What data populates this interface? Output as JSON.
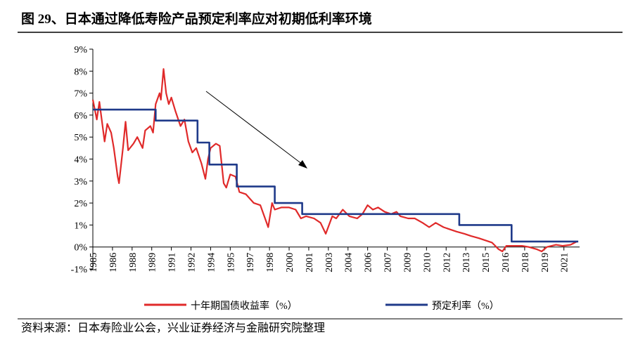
{
  "chart_data": {
    "type": "line",
    "title": "图 29、日本通过降低寿险产品预定利率应对初期低利率环境",
    "source": "资料来源：日本寿险业公会，兴业证券经济与金融研究院整理",
    "xlim": [
      1985,
      2022.2
    ],
    "xticks": [
      {
        "value": 1985,
        "label": "1985"
      },
      {
        "value": 1986.5,
        "label": "1986"
      },
      {
        "value": 1988,
        "label": "1988"
      },
      {
        "value": 1989.5,
        "label": "1989"
      },
      {
        "value": 1991,
        "label": "1991"
      },
      {
        "value": 1992.5,
        "label": "1992"
      },
      {
        "value": 1994,
        "label": "1994"
      },
      {
        "value": 1995.5,
        "label": "1995"
      },
      {
        "value": 1997,
        "label": "1997"
      },
      {
        "value": 1998.5,
        "label": "1998"
      },
      {
        "value": 2000,
        "label": "2000"
      },
      {
        "value": 2001.5,
        "label": "2001"
      },
      {
        "value": 2003,
        "label": "2003"
      },
      {
        "value": 2004.5,
        "label": "2004"
      },
      {
        "value": 2006,
        "label": "2006"
      },
      {
        "value": 2007.5,
        "label": "2007"
      },
      {
        "value": 2009,
        "label": "2009"
      },
      {
        "value": 2010.5,
        "label": "2010"
      },
      {
        "value": 2012,
        "label": "2012"
      },
      {
        "value": 2013.5,
        "label": "2013"
      },
      {
        "value": 2015,
        "label": "2015"
      },
      {
        "value": 2016.5,
        "label": "2016"
      },
      {
        "value": 2018,
        "label": "2018"
      },
      {
        "value": 2019.5,
        "label": "2019"
      },
      {
        "value": 2021,
        "label": "2021"
      }
    ],
    "ylim": [
      -1,
      9
    ],
    "yticks": [
      {
        "value": -1,
        "label": "-1%"
      },
      {
        "value": 0,
        "label": "0%"
      },
      {
        "value": 1,
        "label": "1%"
      },
      {
        "value": 2,
        "label": "2%"
      },
      {
        "value": 3,
        "label": "3%"
      },
      {
        "value": 4,
        "label": "4%"
      },
      {
        "value": 5,
        "label": "5%"
      },
      {
        "value": 6,
        "label": "6%"
      },
      {
        "value": 7,
        "label": "7%"
      },
      {
        "value": 8,
        "label": "8%"
      },
      {
        "value": 9,
        "label": "9%"
      }
    ],
    "series": [
      {
        "name": "十年期国债收益率（%）",
        "color": "#e02a2a",
        "x": [
          1985.0,
          1985.3,
          1985.5,
          1985.9,
          1986.1,
          1986.4,
          1986.6,
          1986.9,
          1987.0,
          1987.3,
          1987.5,
          1987.7,
          1988.1,
          1988.4,
          1988.8,
          1989.0,
          1989.4,
          1989.6,
          1989.8,
          1990.1,
          1990.2,
          1990.4,
          1990.6,
          1990.8,
          1991.0,
          1991.3,
          1991.7,
          1992.0,
          1992.3,
          1992.6,
          1992.9,
          1993.3,
          1993.6,
          1993.8,
          1994.0,
          1994.4,
          1994.7,
          1995.0,
          1995.2,
          1995.5,
          1995.9,
          1996.2,
          1996.7,
          1997.3,
          1997.8,
          1998.1,
          1998.4,
          1998.7,
          1998.9,
          1999.4,
          2000.0,
          2000.5,
          2000.9,
          2001.3,
          2001.9,
          2002.4,
          2002.8,
          2003.3,
          2003.6,
          2004.1,
          2004.6,
          2005.2,
          2005.6,
          2006.0,
          2006.4,
          2006.8,
          2007.3,
          2007.8,
          2008.2,
          2008.5,
          2009.1,
          2009.6,
          2010.2,
          2010.7,
          2011.2,
          2011.8,
          2012.3,
          2012.8,
          2013.4,
          2013.9,
          2014.5,
          2015.0,
          2015.5,
          2016.0,
          2016.3,
          2016.6,
          2017.2,
          2017.8,
          2018.3,
          2018.9,
          2019.3,
          2019.7,
          2020.4,
          2020.9,
          2021.5,
          2022.0
        ],
        "values": [
          6.7,
          5.8,
          6.6,
          4.8,
          5.6,
          5.2,
          4.5,
          3.2,
          2.9,
          4.5,
          5.7,
          4.4,
          4.7,
          5.0,
          4.5,
          5.3,
          5.5,
          5.2,
          6.5,
          7.0,
          6.7,
          8.1,
          7.0,
          6.5,
          6.8,
          6.2,
          5.5,
          5.8,
          4.8,
          4.3,
          4.5,
          3.8,
          3.1,
          4.0,
          4.5,
          4.7,
          4.6,
          2.9,
          2.7,
          3.3,
          3.2,
          2.5,
          2.4,
          2.0,
          1.9,
          1.4,
          0.9,
          2.0,
          1.7,
          1.8,
          1.8,
          1.7,
          1.3,
          1.4,
          1.3,
          1.1,
          0.6,
          1.4,
          1.3,
          1.7,
          1.4,
          1.3,
          1.5,
          1.9,
          1.7,
          1.8,
          1.6,
          1.5,
          1.6,
          1.4,
          1.3,
          1.3,
          1.1,
          0.9,
          1.1,
          0.9,
          0.8,
          0.7,
          0.6,
          0.5,
          0.4,
          0.3,
          0.2,
          -0.1,
          -0.2,
          0.05,
          0.05,
          0.05,
          0.0,
          -0.1,
          -0.2,
          0.0,
          0.1,
          0.05,
          0.1,
          0.25
        ]
      },
      {
        "name": "预定利率（%）",
        "color": "#1f3a8a",
        "x": [
          1985,
          1989.8,
          1989.8,
          1993.0,
          1993.0,
          1993.9,
          1993.9,
          1996.0,
          1996.0,
          1998.9,
          1998.9,
          2001.0,
          2001.0,
          2013.0,
          2013.0,
          2017.0,
          2017.0,
          2022.1
        ],
        "values": [
          6.25,
          6.25,
          5.75,
          5.75,
          4.75,
          4.75,
          3.75,
          3.75,
          2.75,
          2.75,
          2.0,
          2.0,
          1.5,
          1.5,
          1.0,
          1.0,
          0.25,
          0.25
        ]
      }
    ]
  }
}
